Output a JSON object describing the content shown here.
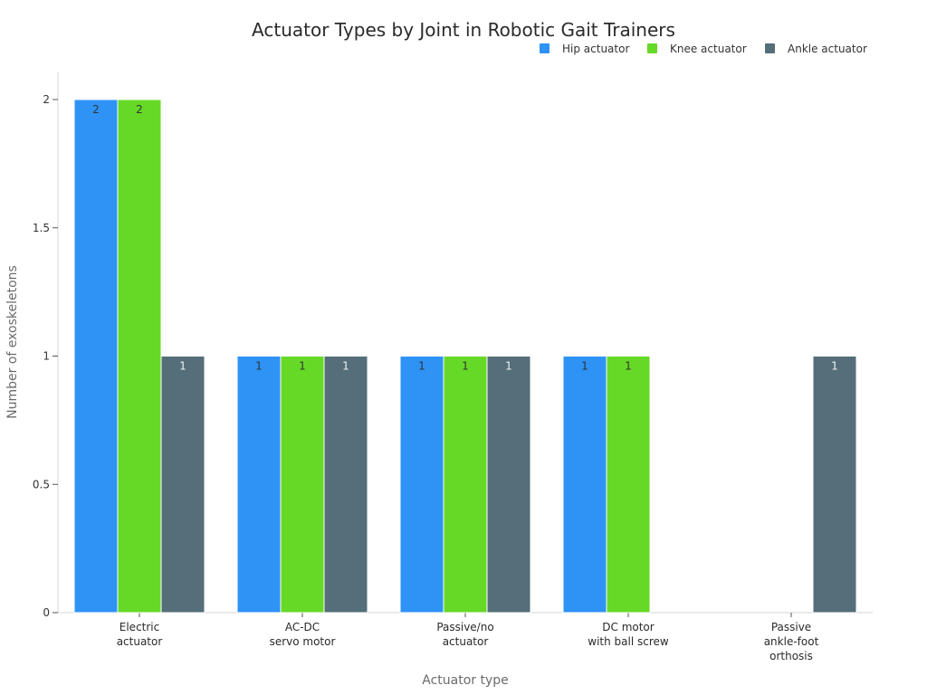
{
  "chart_data": {
    "type": "bar",
    "title": "Actuator Types by Joint in Robotic Gait Trainers",
    "xlabel": "Actuator type",
    "ylabel": "Number of exoskeletons",
    "categories": [
      [
        "Electric",
        "actuator"
      ],
      [
        "AC-DC",
        "servo motor"
      ],
      [
        "Passive/no",
        "actuator"
      ],
      [
        "DC motor",
        "with ball screw"
      ],
      [
        "Passive",
        "ankle-foot",
        "orthosis"
      ]
    ],
    "series": [
      {
        "name": "Hip actuator",
        "color": "#2e93f5",
        "values": [
          2,
          1,
          1,
          1,
          0
        ]
      },
      {
        "name": "Knee actuator",
        "color": "#66d927",
        "values": [
          2,
          1,
          1,
          1,
          0
        ]
      },
      {
        "name": "Ankle actuator",
        "color": "#546e7a",
        "values": [
          1,
          1,
          1,
          0,
          1
        ]
      }
    ],
    "ylim": [
      0,
      2
    ],
    "yticks": [
      "0",
      "0.5",
      "1",
      "1.5",
      "2"
    ],
    "ytick_values": [
      0,
      0.5,
      1,
      1.5,
      2
    ],
    "legend_position": "top-right",
    "grid": false,
    "data_labels": true
  }
}
